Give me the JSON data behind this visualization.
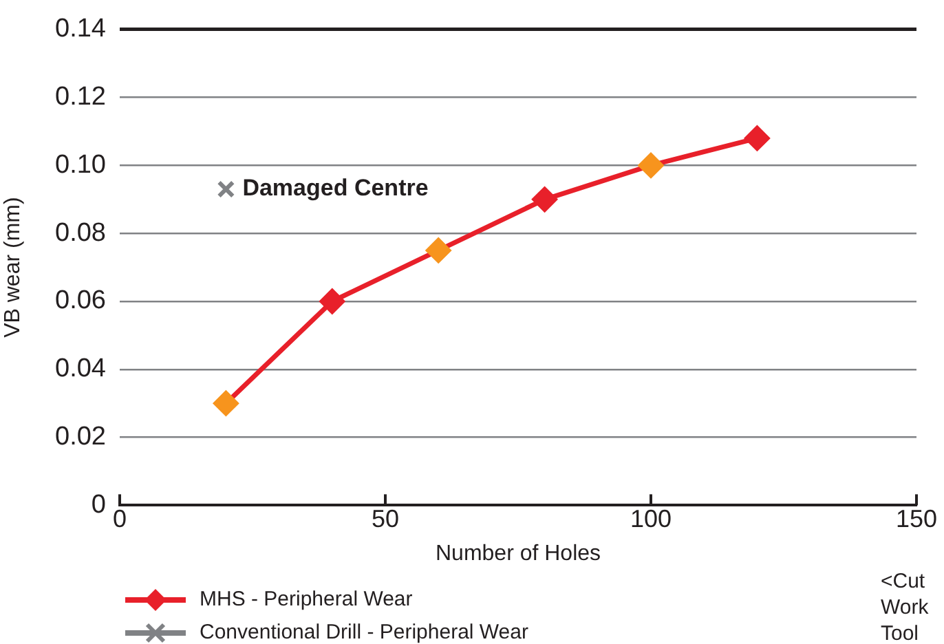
{
  "chart_data": {
    "type": "line",
    "xlabel": "Number of Holes",
    "ylabel": "VB wear (mm)",
    "xlim": [
      0,
      150
    ],
    "xticks": [
      0,
      50,
      100,
      150
    ],
    "ylim": [
      0,
      0.14
    ],
    "yticks": [
      0,
      0.02,
      0.04,
      0.06,
      0.08,
      {
        "value": 0.1,
        "label": "0.10"
      },
      0.12,
      0.14
    ],
    "grid": "y",
    "legend": "bottom left",
    "line_style": "solid",
    "series": [
      {
        "name": "MHS - Peripheral Wear",
        "marker": "diamond",
        "color": "#e8202a",
        "colors": [
          "#f7941d",
          "#e8202a",
          "#f7941d",
          "#e8202a",
          "#f7941d",
          "#e8202a"
        ],
        "x": [
          20,
          40,
          60,
          80,
          100,
          120
        ],
        "values": [
          0.03,
          0.06,
          0.075,
          0.09,
          0.1,
          0.108
        ]
      },
      {
        "name": "Conventional Drill - Peripheral Wear",
        "marker": "cross",
        "color": "#808285",
        "x": [
          20
        ],
        "values": [
          0.093
        ]
      }
    ],
    "annotations": [
      {
        "text": "Damaged Centre",
        "x": 20,
        "y": 0.093
      },
      "<Cut",
      "Work",
      "Tool"
    ]
  }
}
